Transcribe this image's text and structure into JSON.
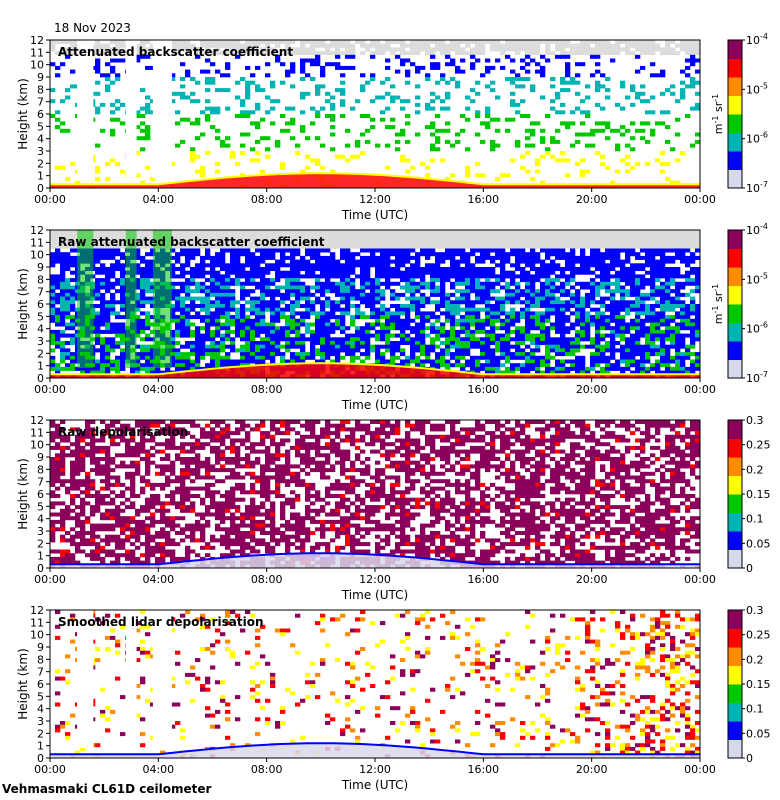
{
  "header": {
    "date": "18 Nov 2023"
  },
  "footer": {
    "instrument": "Vehmasmaki CL61D ceilometer"
  },
  "colors": {
    "background": "#ffffff",
    "noise_gray": "#dcdcdc",
    "colormap": [
      "#d8d8ec",
      "#0000ff",
      "#00b4b4",
      "#00c800",
      "#ffff00",
      "#ff8c00",
      "#ff0000",
      "#8b005a"
    ]
  },
  "chart_data": [
    {
      "type": "heatmap",
      "title": "Attenuated backscatter coefficient",
      "xlabel": "Time (UTC)",
      "ylabel": "Height (km)",
      "x_ticks": [
        "00:00",
        "04:00",
        "08:00",
        "12:00",
        "16:00",
        "20:00",
        "00:00"
      ],
      "y_ticks": [
        "0",
        "1",
        "2",
        "3",
        "4",
        "5",
        "6",
        "7",
        "8",
        "9",
        "10",
        "11",
        "12"
      ],
      "ylim": [
        0,
        12
      ],
      "colorbar": {
        "scale": "log",
        "range": [
          1e-07,
          0.0001
        ],
        "ticks": [
          "10",
          "10",
          "10",
          "10"
        ],
        "exponents": [
          "-7",
          "-6",
          "-5",
          "-4"
        ],
        "unit_base": "m",
        "unit_exp1": "-1",
        "unit_mid": " sr",
        "unit_exp2": "-1"
      }
    },
    {
      "type": "heatmap",
      "title": "Raw attenuated backscatter coefficient",
      "xlabel": "Time (UTC)",
      "ylabel": "Height (km)",
      "x_ticks": [
        "00:00",
        "04:00",
        "08:00",
        "12:00",
        "16:00",
        "20:00",
        "00:00"
      ],
      "y_ticks": [
        "0",
        "1",
        "2",
        "3",
        "4",
        "5",
        "6",
        "7",
        "8",
        "9",
        "10",
        "11",
        "12"
      ],
      "ylim": [
        0,
        12
      ],
      "colorbar": {
        "scale": "log",
        "range": [
          1e-07,
          0.0001
        ],
        "ticks": [
          "10",
          "10",
          "10",
          "10"
        ],
        "exponents": [
          "-7",
          "-6",
          "-5",
          "-4"
        ],
        "unit_base": "m",
        "unit_exp1": "-1",
        "unit_mid": " sr",
        "unit_exp2": "-1"
      }
    },
    {
      "type": "heatmap",
      "title": "Raw depolarisation",
      "xlabel": "Time (UTC)",
      "ylabel": "Height (km)",
      "x_ticks": [
        "00:00",
        "04:00",
        "08:00",
        "12:00",
        "16:00",
        "20:00",
        "00:00"
      ],
      "y_ticks": [
        "0",
        "1",
        "2",
        "3",
        "4",
        "5",
        "6",
        "7",
        "8",
        "9",
        "10",
        "11",
        "12"
      ],
      "ylim": [
        0,
        12
      ],
      "colorbar": {
        "scale": "linear",
        "range": [
          0,
          0.3
        ],
        "ticks": [
          "0",
          "0.05",
          "0.1",
          "0.15",
          "0.2",
          "0.25",
          "0.3"
        ]
      }
    },
    {
      "type": "heatmap",
      "title": "Smoothed lidar depolarisation",
      "xlabel": "Time (UTC)",
      "ylabel": "Height (km)",
      "x_ticks": [
        "00:00",
        "04:00",
        "08:00",
        "12:00",
        "16:00",
        "20:00",
        "00:00"
      ],
      "y_ticks": [
        "0",
        "1",
        "2",
        "3",
        "4",
        "5",
        "6",
        "7",
        "8",
        "9",
        "10",
        "11",
        "12"
      ],
      "ylim": [
        0,
        12
      ],
      "colorbar": {
        "scale": "linear",
        "range": [
          0,
          0.3
        ],
        "ticks": [
          "0",
          "0.05",
          "0.1",
          "0.15",
          "0.2",
          "0.25",
          "0.3"
        ]
      }
    }
  ]
}
